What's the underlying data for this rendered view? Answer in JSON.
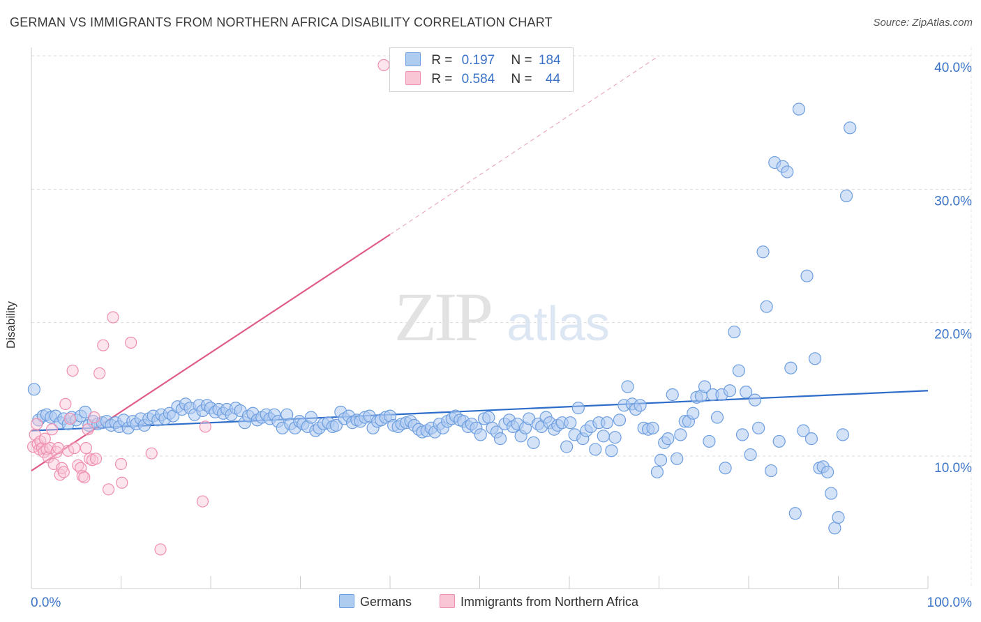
{
  "title": "GERMAN VS IMMIGRANTS FROM NORTHERN AFRICA DISABILITY CORRELATION CHART",
  "source": "Source: ZipAtlas.com",
  "watermark": {
    "zip": "ZIP",
    "atlas": "atlas"
  },
  "legend": {
    "r_label": "R =",
    "n_label": "N =",
    "rows": [
      {
        "r": "0.197",
        "n": "184",
        "color": "#aecbf0",
        "border": "#6d9ee0"
      },
      {
        "r": "0.584",
        "n": "44",
        "color": "#f9c6d6",
        "border": "#ef8fae"
      }
    ]
  },
  "bottom_legend": [
    {
      "label": "Germans",
      "color": "#aecbf0",
      "border": "#6d9ee0"
    },
    {
      "label": "Immigrants from Northern Africa",
      "color": "#f9c6d6",
      "border": "#ef8fae"
    }
  ],
  "chart_data": {
    "type": "scatter",
    "title": "GERMAN VS IMMIGRANTS FROM NORTHERN AFRICA DISABILITY CORRELATION CHART",
    "xlabel": "",
    "ylabel": "Disability",
    "xlim": [
      0,
      100
    ],
    "ylim": [
      0,
      40
    ],
    "x_tick_labels": [
      "0.0%",
      "100.0%"
    ],
    "y_tick_labels": [
      "10.0%",
      "20.0%",
      "30.0%",
      "40.0%"
    ],
    "y_ticks": [
      10,
      20,
      30,
      40
    ],
    "grid": true,
    "legend_position": "top-center",
    "series": [
      {
        "name": "Germans",
        "color": "#6d9ee0",
        "fill": "#aecbf0",
        "trend": {
          "x0": 0,
          "y0": 11.9,
          "x1": 100,
          "y1": 14.9,
          "color": "#2d6cc9"
        },
        "points": [
          [
            0.3,
            15.0
          ],
          [
            0.8,
            12.7
          ],
          [
            1.3,
            13.0
          ],
          [
            1.7,
            13.1
          ],
          [
            2.2,
            12.9
          ],
          [
            2.7,
            13.0
          ],
          [
            3.2,
            12.5
          ],
          [
            3.6,
            12.8
          ],
          [
            4.1,
            12.4
          ],
          [
            4.5,
            12.9
          ],
          [
            5.0,
            12.7
          ],
          [
            5.5,
            13.0
          ],
          [
            6.0,
            13.3
          ],
          [
            6.4,
            12.3
          ],
          [
            6.9,
            12.6
          ],
          [
            7.4,
            12.4
          ],
          [
            7.9,
            12.5
          ],
          [
            8.4,
            12.6
          ],
          [
            8.9,
            12.3
          ],
          [
            9.4,
            12.5
          ],
          [
            9.8,
            12.2
          ],
          [
            10.3,
            12.7
          ],
          [
            10.8,
            12.1
          ],
          [
            11.3,
            12.6
          ],
          [
            11.7,
            12.4
          ],
          [
            12.2,
            12.8
          ],
          [
            12.6,
            12.3
          ],
          [
            13.1,
            12.8
          ],
          [
            13.6,
            13.0
          ],
          [
            14.1,
            12.7
          ],
          [
            14.5,
            13.1
          ],
          [
            14.9,
            12.8
          ],
          [
            15.4,
            13.2
          ],
          [
            15.8,
            13.0
          ],
          [
            16.3,
            13.7
          ],
          [
            16.8,
            13.5
          ],
          [
            17.2,
            13.9
          ],
          [
            17.7,
            13.6
          ],
          [
            18.2,
            13.1
          ],
          [
            18.7,
            13.8
          ],
          [
            19.1,
            13.4
          ],
          [
            19.6,
            13.8
          ],
          [
            20.0,
            13.6
          ],
          [
            20.5,
            13.3
          ],
          [
            20.9,
            13.5
          ],
          [
            21.4,
            13.2
          ],
          [
            21.8,
            13.5
          ],
          [
            22.3,
            13.1
          ],
          [
            22.8,
            13.6
          ],
          [
            23.3,
            13.4
          ],
          [
            23.8,
            12.5
          ],
          [
            24.2,
            13.0
          ],
          [
            24.7,
            13.2
          ],
          [
            25.2,
            12.7
          ],
          [
            25.7,
            12.9
          ],
          [
            26.2,
            13.1
          ],
          [
            26.6,
            12.8
          ],
          [
            27.1,
            13.1
          ],
          [
            27.5,
            12.6
          ],
          [
            28.0,
            12.1
          ],
          [
            28.5,
            13.1
          ],
          [
            28.9,
            12.4
          ],
          [
            29.4,
            12.1
          ],
          [
            29.9,
            12.6
          ],
          [
            30.3,
            12.4
          ],
          [
            30.8,
            12.2
          ],
          [
            31.2,
            12.9
          ],
          [
            31.7,
            11.9
          ],
          [
            32.1,
            12.1
          ],
          [
            32.6,
            12.4
          ],
          [
            33.1,
            12.5
          ],
          [
            33.6,
            12.2
          ],
          [
            34.0,
            12.3
          ],
          [
            34.5,
            13.3
          ],
          [
            34.9,
            12.8
          ],
          [
            35.4,
            13.0
          ],
          [
            35.8,
            12.5
          ],
          [
            36.3,
            12.7
          ],
          [
            36.7,
            12.6
          ],
          [
            37.2,
            12.9
          ],
          [
            37.7,
            13.0
          ],
          [
            38.1,
            12.1
          ],
          [
            38.6,
            12.6
          ],
          [
            39.0,
            12.7
          ],
          [
            39.5,
            12.9
          ],
          [
            40.0,
            13.0
          ],
          [
            40.4,
            12.3
          ],
          [
            40.9,
            12.2
          ],
          [
            41.3,
            12.4
          ],
          [
            41.8,
            12.5
          ],
          [
            42.3,
            12.6
          ],
          [
            42.7,
            12.3
          ],
          [
            43.2,
            12.0
          ],
          [
            43.6,
            11.8
          ],
          [
            44.1,
            11.9
          ],
          [
            44.6,
            12.1
          ],
          [
            45.0,
            11.8
          ],
          [
            45.5,
            12.4
          ],
          [
            45.9,
            12.1
          ],
          [
            46.4,
            12.6
          ],
          [
            46.9,
            12.8
          ],
          [
            47.3,
            13.0
          ],
          [
            47.8,
            12.7
          ],
          [
            48.2,
            12.6
          ],
          [
            48.7,
            12.2
          ],
          [
            49.1,
            12.4
          ],
          [
            49.6,
            12.1
          ],
          [
            50.1,
            11.6
          ],
          [
            50.5,
            12.8
          ],
          [
            51.0,
            12.9
          ],
          [
            51.4,
            12.1
          ],
          [
            51.9,
            11.8
          ],
          [
            52.3,
            11.3
          ],
          [
            52.8,
            12.4
          ],
          [
            53.3,
            12.7
          ],
          [
            53.7,
            12.2
          ],
          [
            54.2,
            12.4
          ],
          [
            54.6,
            11.5
          ],
          [
            55.1,
            12.1
          ],
          [
            55.5,
            12.8
          ],
          [
            56.0,
            11.0
          ],
          [
            56.5,
            12.4
          ],
          [
            56.9,
            12.2
          ],
          [
            57.4,
            12.9
          ],
          [
            57.8,
            12.5
          ],
          [
            58.3,
            12.0
          ],
          [
            58.7,
            12.3
          ],
          [
            59.2,
            12.5
          ],
          [
            59.7,
            10.7
          ],
          [
            60.1,
            12.5
          ],
          [
            60.6,
            11.6
          ],
          [
            61.0,
            13.6
          ],
          [
            61.5,
            11.3
          ],
          [
            61.9,
            11.9
          ],
          [
            62.4,
            12.2
          ],
          [
            62.9,
            10.5
          ],
          [
            63.3,
            12.5
          ],
          [
            63.8,
            11.5
          ],
          [
            64.2,
            12.5
          ],
          [
            64.7,
            10.4
          ],
          [
            65.1,
            11.4
          ],
          [
            65.6,
            12.7
          ],
          [
            66.1,
            13.8
          ],
          [
            66.5,
            15.2
          ],
          [
            67.0,
            13.9
          ],
          [
            67.4,
            13.5
          ],
          [
            67.9,
            13.8
          ],
          [
            68.3,
            12.1
          ],
          [
            68.8,
            12.0
          ],
          [
            69.3,
            12.1
          ],
          [
            69.8,
            8.8
          ],
          [
            70.2,
            9.7
          ],
          [
            70.6,
            11.0
          ],
          [
            71.0,
            11.3
          ],
          [
            71.5,
            14.6
          ],
          [
            72.0,
            9.8
          ],
          [
            72.4,
            11.6
          ],
          [
            72.9,
            12.6
          ],
          [
            73.3,
            12.6
          ],
          [
            73.8,
            13.2
          ],
          [
            74.2,
            14.4
          ],
          [
            74.7,
            14.5
          ],
          [
            75.1,
            15.2
          ],
          [
            75.6,
            11.1
          ],
          [
            76.0,
            14.6
          ],
          [
            76.5,
            12.9
          ],
          [
            77.0,
            14.6
          ],
          [
            77.4,
            9.1
          ],
          [
            77.9,
            14.9
          ],
          [
            78.4,
            19.3
          ],
          [
            78.9,
            16.4
          ],
          [
            79.3,
            11.6
          ],
          [
            79.7,
            14.8
          ],
          [
            80.2,
            10.1
          ],
          [
            80.7,
            14.2
          ],
          [
            81.1,
            12.1
          ],
          [
            81.6,
            25.3
          ],
          [
            82.0,
            21.2
          ],
          [
            82.5,
            8.9
          ],
          [
            82.9,
            32.0
          ],
          [
            83.4,
            11.1
          ],
          [
            83.8,
            31.7
          ],
          [
            84.3,
            31.3
          ],
          [
            84.7,
            16.6
          ],
          [
            85.2,
            5.7
          ],
          [
            85.6,
            36.0
          ],
          [
            86.1,
            11.9
          ],
          [
            86.5,
            23.5
          ],
          [
            87.0,
            11.3
          ],
          [
            87.4,
            17.3
          ],
          [
            87.9,
            9.1
          ],
          [
            88.3,
            9.2
          ],
          [
            88.8,
            8.8
          ],
          [
            89.2,
            7.2
          ],
          [
            89.6,
            4.6
          ],
          [
            90.0,
            5.4
          ],
          [
            90.5,
            11.6
          ],
          [
            90.9,
            29.5
          ],
          [
            91.3,
            34.6
          ]
        ]
      },
      {
        "name": "Immigrants from Northern Africa",
        "color": "#ef8fae",
        "fill": "#f9c6d6",
        "trend": {
          "x0": 0,
          "y0": 8.9,
          "x1": 40,
          "y1": 26.6,
          "color": "#e05c88"
        },
        "trend_extension": {
          "x0": 40,
          "y0": 26.6,
          "x1": 70,
          "y1": 40,
          "color": "#e89ab4"
        },
        "points": [
          [
            0.2,
            10.7
          ],
          [
            0.4,
            11.6
          ],
          [
            0.6,
            12.4
          ],
          [
            0.7,
            10.9
          ],
          [
            0.9,
            10.5
          ],
          [
            1.0,
            11.1
          ],
          [
            1.2,
            10.6
          ],
          [
            1.4,
            10.3
          ],
          [
            1.5,
            11.3
          ],
          [
            1.7,
            10.5
          ],
          [
            1.9,
            9.9
          ],
          [
            2.1,
            10.6
          ],
          [
            2.3,
            12.0
          ],
          [
            2.5,
            9.4
          ],
          [
            2.8,
            10.3
          ],
          [
            3.0,
            10.6
          ],
          [
            3.2,
            8.6
          ],
          [
            3.4,
            9.1
          ],
          [
            3.6,
            8.8
          ],
          [
            3.8,
            13.9
          ],
          [
            4.1,
            10.4
          ],
          [
            4.3,
            12.8
          ],
          [
            4.6,
            16.4
          ],
          [
            4.8,
            10.6
          ],
          [
            5.2,
            9.3
          ],
          [
            5.5,
            9.1
          ],
          [
            5.7,
            8.5
          ],
          [
            5.9,
            8.4
          ],
          [
            6.1,
            10.6
          ],
          [
            6.3,
            12.0
          ],
          [
            6.5,
            9.8
          ],
          [
            6.8,
            9.7
          ],
          [
            7.0,
            12.9
          ],
          [
            7.2,
            9.8
          ],
          [
            7.6,
            16.2
          ],
          [
            8.0,
            18.3
          ],
          [
            8.6,
            7.5
          ],
          [
            9.1,
            20.4
          ],
          [
            10.0,
            9.4
          ],
          [
            10.1,
            8.0
          ],
          [
            11.1,
            18.5
          ],
          [
            13.4,
            10.2
          ],
          [
            14.4,
            3.0
          ],
          [
            19.1,
            6.6
          ],
          [
            19.4,
            12.2
          ],
          [
            39.3,
            39.3
          ]
        ]
      }
    ]
  }
}
